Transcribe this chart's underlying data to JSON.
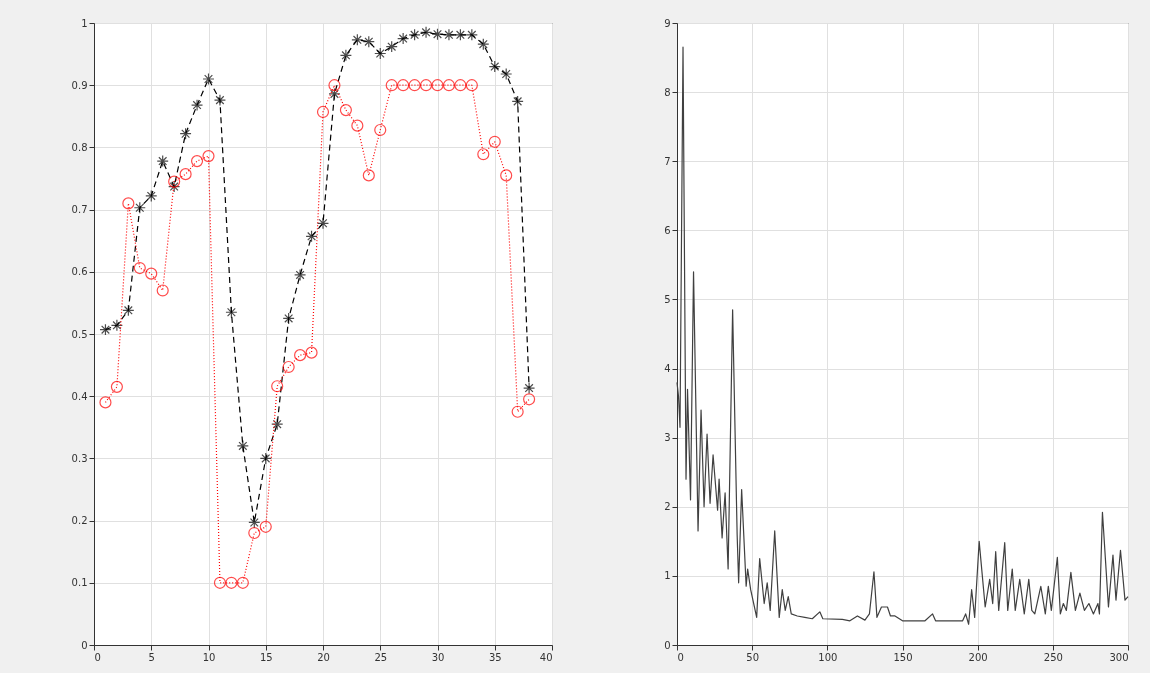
{
  "chart_data": [
    {
      "type": "line",
      "xlim": [
        0,
        40
      ],
      "ylim": [
        0,
        1
      ],
      "xticks": [
        0,
        5,
        10,
        15,
        20,
        25,
        30,
        35,
        40
      ],
      "yticks": [
        0,
        0.1,
        0.2,
        0.3,
        0.4,
        0.5,
        0.6,
        0.7,
        0.8,
        0.9,
        1
      ],
      "grid": true,
      "x": [
        1,
        2,
        3,
        4,
        5,
        6,
        7,
        8,
        9,
        10,
        11,
        12,
        13,
        14,
        15,
        16,
        17,
        18,
        19,
        20,
        21,
        22,
        23,
        24,
        25,
        26,
        27,
        28,
        29,
        30,
        31,
        32,
        33,
        34,
        35,
        36,
        37,
        38
      ],
      "series": [
        {
          "color": "#000000",
          "marker": "cross",
          "line_style": "dashed",
          "values": [
            0.507,
            0.514,
            0.538,
            0.703,
            0.722,
            0.778,
            0.737,
            0.822,
            0.868,
            0.91,
            0.876,
            0.535,
            0.32,
            0.197,
            0.3,
            0.355,
            0.525,
            0.595,
            0.657,
            0.678,
            0.886,
            0.948,
            0.973,
            0.97,
            0.951,
            0.962,
            0.975,
            0.981,
            0.985,
            0.982,
            0.981,
            0.981,
            0.981,
            0.966,
            0.93,
            0.918,
            0.874,
            0.413
          ]
        },
        {
          "color": "#ff0000",
          "marker": "circle",
          "line_style": "dotted",
          "values": [
            0.39,
            0.415,
            0.71,
            0.606,
            0.597,
            0.57,
            0.745,
            0.757,
            0.778,
            0.786,
            0.1,
            0.1,
            0.1,
            0.18,
            0.19,
            0.416,
            0.447,
            0.466,
            0.47,
            0.857,
            0.9,
            0.86,
            0.835,
            0.755,
            0.828,
            0.9,
            0.9,
            0.9,
            0.9,
            0.9,
            0.9,
            0.9,
            0.9,
            0.789,
            0.809,
            0.755,
            0.375,
            0.395
          ]
        }
      ]
    },
    {
      "type": "line",
      "xlim": [
        0,
        300
      ],
      "ylim": [
        0,
        9
      ],
      "xticks": [
        0,
        50,
        100,
        150,
        200,
        250,
        300
      ],
      "yticks": [
        0,
        1,
        2,
        3,
        4,
        5,
        6,
        7,
        8,
        9
      ],
      "grid": true,
      "series": [
        {
          "color": "#404040",
          "marker": "none",
          "line_style": "solid",
          "x": [
            0,
            1,
            2,
            4,
            6,
            7,
            9,
            11,
            14,
            16,
            18,
            20,
            22,
            24,
            27,
            28,
            30,
            32,
            34,
            37,
            40,
            41,
            43,
            46,
            47,
            49,
            53,
            55,
            58,
            60,
            62,
            65,
            68,
            70,
            72,
            74,
            76,
            80,
            85,
            90,
            95,
            97,
            110,
            115,
            120,
            125,
            128,
            131,
            133,
            136,
            140,
            142,
            145,
            150,
            165,
            170,
            172,
            190,
            192,
            194,
            196,
            198,
            201,
            205,
            208,
            210,
            212,
            214,
            218,
            220,
            223,
            225,
            228,
            231,
            234,
            236,
            238,
            242,
            245,
            247,
            249,
            253,
            255,
            257,
            259,
            262,
            265,
            268,
            271,
            274,
            277,
            280,
            281,
            283,
            287,
            290,
            292,
            295,
            298,
            300
          ],
          "values": [
            3.8,
            3.6,
            3.15,
            8.65,
            2.4,
            3.7,
            2.1,
            5.4,
            1.65,
            3.4,
            2.0,
            3.05,
            2.05,
            2.75,
            1.95,
            2.4,
            1.55,
            2.2,
            1.1,
            4.85,
            1.6,
            0.9,
            2.25,
            0.85,
            1.1,
            0.8,
            0.4,
            1.25,
            0.6,
            0.9,
            0.5,
            1.65,
            0.4,
            0.8,
            0.5,
            0.7,
            0.45,
            0.42,
            0.4,
            0.38,
            0.48,
            0.38,
            0.37,
            0.35,
            0.42,
            0.36,
            0.45,
            1.06,
            0.4,
            0.55,
            0.55,
            0.42,
            0.42,
            0.35,
            0.35,
            0.45,
            0.35,
            0.35,
            0.45,
            0.3,
            0.8,
            0.4,
            1.5,
            0.55,
            0.95,
            0.6,
            1.35,
            0.5,
            1.48,
            0.5,
            1.1,
            0.5,
            0.95,
            0.45,
            0.95,
            0.5,
            0.45,
            0.85,
            0.45,
            0.85,
            0.5,
            1.27,
            0.45,
            0.6,
            0.5,
            1.05,
            0.5,
            0.75,
            0.5,
            0.6,
            0.45,
            0.6,
            0.45,
            1.92,
            0.55,
            1.3,
            0.65,
            1.37,
            0.65,
            0.7
          ]
        }
      ]
    }
  ]
}
